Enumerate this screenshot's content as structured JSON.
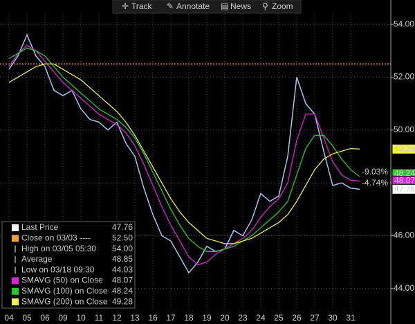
{
  "toolbar": [
    "Track",
    "Annotate",
    "News",
    "Zoom"
  ],
  "chart_data": {
    "type": "line",
    "categories": [
      "04",
      null,
      "05",
      null,
      "06",
      null,
      "09",
      null,
      "10",
      null,
      "11",
      null,
      "12",
      null,
      "13",
      null,
      "16",
      null,
      "17",
      null,
      "18",
      null,
      "19",
      null,
      "20",
      null,
      "23",
      null,
      "24",
      null,
      "25",
      null,
      "26",
      null,
      "27",
      null,
      "30",
      null,
      "31",
      null
    ],
    "ylim": [
      42.66,
      54.92
    ],
    "yticks": [
      {
        "value": 44,
        "label": "44.00"
      },
      {
        "value": 46,
        "label": "46.00"
      },
      {
        "value": 48,
        "label": "48.00"
      },
      {
        "value": 50,
        "label": "50.00"
      },
      {
        "value": 52,
        "label": "52.00"
      },
      {
        "value": 54,
        "label": "54.00"
      }
    ],
    "grid": true,
    "series": [
      {
        "name": "Last Price",
        "color": "#9ec9f5",
        "legend_color": "#ffffff",
        "legend_value": "47.76",
        "values": [
          52.3,
          52.8,
          53.6,
          52.8,
          52.4,
          51.5,
          51.3,
          51.5,
          50.8,
          50.4,
          50.3,
          50.0,
          50.3,
          49.5,
          49.0,
          47.8,
          46.8,
          46.0,
          45.8,
          45.2,
          44.6,
          45.0,
          45.6,
          45.4,
          45.5,
          46.2,
          46.0,
          46.6,
          47.6,
          47.3,
          47.5,
          49.0,
          52.0,
          51.0,
          50.6,
          49.2,
          47.9,
          48.0,
          47.8,
          47.76
        ]
      },
      {
        "name": "SMAVG (50) on Close",
        "color": "#e020e0",
        "legend_value": "48.07",
        "values": [
          52.4,
          52.9,
          53.2,
          53.0,
          52.6,
          52.2,
          51.8,
          51.5,
          51.2,
          50.9,
          50.6,
          50.4,
          50.2,
          49.9,
          49.4,
          48.7,
          47.9,
          47.1,
          46.4,
          45.8,
          45.2,
          44.9,
          45.0,
          45.3,
          45.5,
          45.7,
          45.9,
          46.2,
          46.7,
          47.1,
          47.4,
          48.0,
          49.6,
          50.6,
          50.6,
          49.7,
          48.8,
          48.3,
          48.1,
          48.07
        ]
      },
      {
        "name": "SMAVG (100) on Close",
        "color": "#20d020",
        "legend_value": "48.24",
        "values": [
          52.7,
          52.9,
          53.1,
          53.0,
          52.8,
          52.4,
          52.0,
          51.7,
          51.4,
          51.1,
          50.8,
          50.6,
          50.4,
          50.1,
          49.7,
          49.1,
          48.4,
          47.7,
          47.0,
          46.4,
          45.9,
          45.6,
          45.4,
          45.4,
          45.5,
          45.6,
          45.8,
          46.0,
          46.3,
          46.6,
          46.9,
          47.3,
          48.3,
          49.3,
          49.8,
          49.8,
          49.4,
          48.9,
          48.5,
          48.24
        ]
      },
      {
        "name": "SMAVG (200) on Close",
        "color": "#f0f040",
        "legend_value": "49.28",
        "values": [
          51.8,
          52.0,
          52.2,
          52.4,
          52.5,
          52.5,
          52.3,
          52.1,
          51.9,
          51.6,
          51.3,
          51.0,
          50.7,
          50.3,
          49.8,
          49.2,
          48.6,
          48.0,
          47.4,
          46.9,
          46.5,
          46.2,
          45.9,
          45.8,
          45.7,
          45.7,
          45.8,
          45.9,
          46.1,
          46.3,
          46.5,
          46.8,
          47.3,
          47.9,
          48.5,
          48.9,
          49.1,
          49.2,
          49.3,
          49.28
        ]
      }
    ],
    "reference_line": {
      "value": 52.5,
      "color": "#f0a030"
    },
    "stats": [
      {
        "label": "Close on 03/03 ----",
        "value": "52.50",
        "color": "#f0a030"
      },
      {
        "label": "High on 03/05 05:30",
        "value": "54.00"
      },
      {
        "label": "Average",
        "value": "48.85"
      },
      {
        "label": "Low on 03/18 09:30",
        "value": "44.03"
      }
    ],
    "annotations": [
      "-9.03%",
      "-4.74%"
    ]
  }
}
